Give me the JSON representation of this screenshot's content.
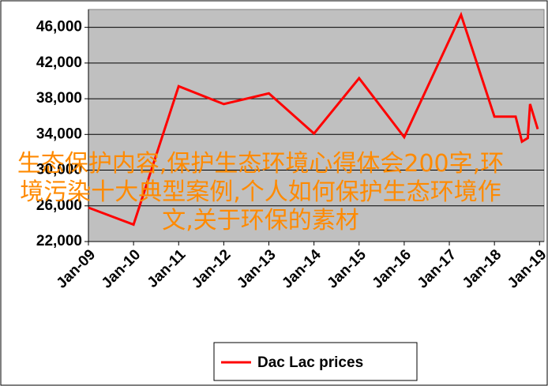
{
  "chart_data": {
    "type": "line",
    "annotation": "生态保护内容,保护生态环境心得体会200字,环境污染十大典型案例,个人如何保护生态环境作文,关于环保的素材",
    "x": [
      2009,
      2010,
      2011,
      2012,
      2013,
      2014,
      2015,
      2016,
      2017.26,
      2018,
      2018.47,
      2018.61,
      2018.74,
      2018.79,
      2018.96
    ],
    "series": [
      {
        "name": "Dac Lac prices",
        "color": "#ff0000",
        "values": [
          25800,
          23900,
          39400,
          37400,
          38600,
          34100,
          40300,
          33700,
          47400,
          36000,
          36000,
          33200,
          33600,
          37400,
          34600
        ]
      }
    ],
    "xlim": [
      2009,
      2019.1
    ],
    "xticks": [
      {
        "value": 2009,
        "label": "Jan-09"
      },
      {
        "value": 2010,
        "label": "Jan-10"
      },
      {
        "value": 2011,
        "label": "Jan-11"
      },
      {
        "value": 2012,
        "label": "Jan-12"
      },
      {
        "value": 2013,
        "label": "Jan-13"
      },
      {
        "value": 2014,
        "label": "Jan-14"
      },
      {
        "value": 2015,
        "label": "Jan-15"
      },
      {
        "value": 2016,
        "label": "Jan-16"
      },
      {
        "value": 2017,
        "label": "Jan-17"
      },
      {
        "value": 2018,
        "label": "Jan-18"
      },
      {
        "value": 2019,
        "label": "Jan-19"
      }
    ],
    "ylim": [
      22000,
      48000
    ],
    "yticks": [
      {
        "value": 22000,
        "label": "22,000"
      },
      {
        "value": 26000,
        "label": "26,000"
      },
      {
        "value": 30000,
        "label": "30,000"
      },
      {
        "value": 34000,
        "label": "34,000"
      },
      {
        "value": 38000,
        "label": "38,000"
      },
      {
        "value": 42000,
        "label": "42,000"
      },
      {
        "value": 46000,
        "label": "46,000"
      }
    ],
    "grid": true,
    "background": "#c0c0c0"
  }
}
